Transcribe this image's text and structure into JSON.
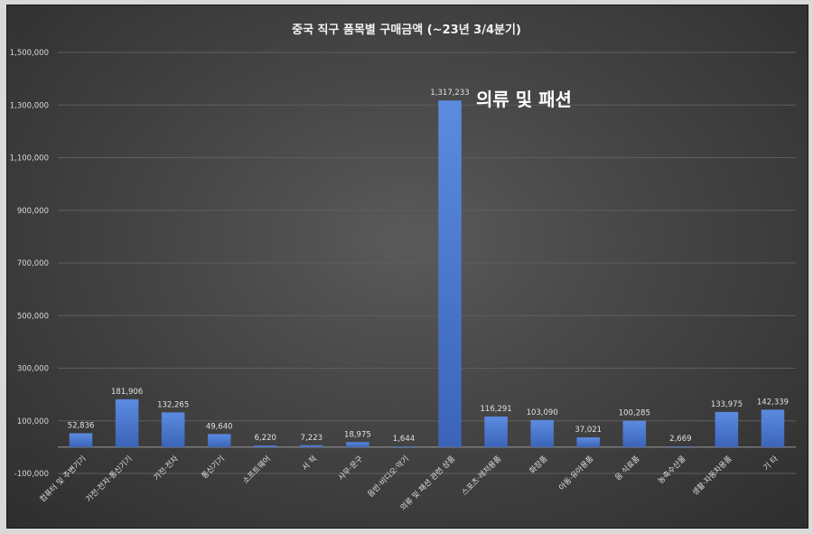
{
  "chart_data": {
    "type": "bar",
    "title": "중국 직구 품목별 구매금액 (~23년 3/4분기)",
    "annotation": "의류 및 패션",
    "categories": [
      "컴퓨터 및 주변기기",
      "가전·전자·통신기기",
      "가전·전자",
      "통신기기",
      "소프트웨어",
      "서 적",
      "사무·문구",
      "음반·비디오·악기",
      "의류 및 패션 관련 상품",
      "스포츠·레저용품",
      "화장품",
      "아동·유아용품",
      "음 식료품",
      "농축수산물",
      "생활·자동차용품",
      "기 타"
    ],
    "values": [
      52836,
      181906,
      132265,
      49640,
      6220,
      7223,
      18975,
      1644,
      1317233,
      116291,
      103090,
      37021,
      100285,
      2669,
      133975,
      142339
    ],
    "value_labels": [
      "52,836",
      "181,906",
      "132,265",
      "49,640",
      "6,220",
      "7,223",
      "18,975",
      "1,644",
      "1,317,233",
      "116,291",
      "103,090",
      "37,021",
      "100,285",
      "2,669",
      "133,975",
      "142,339"
    ],
    "y_ticks": [
      -100000,
      100000,
      300000,
      500000,
      700000,
      900000,
      1100000,
      1300000,
      1500000
    ],
    "y_tick_labels": [
      "-100,000",
      "100,000",
      "300,000",
      "500,000",
      "700,000",
      "900,000",
      "1,100,000",
      "1,300,000",
      "1,500,000"
    ],
    "ylim": [
      -100000,
      1500000
    ],
    "grid": true,
    "bar_color": "#4472c4",
    "bar_color_light": "#5b8be0",
    "grid_color": "#5e5e5e",
    "legend": "none"
  }
}
